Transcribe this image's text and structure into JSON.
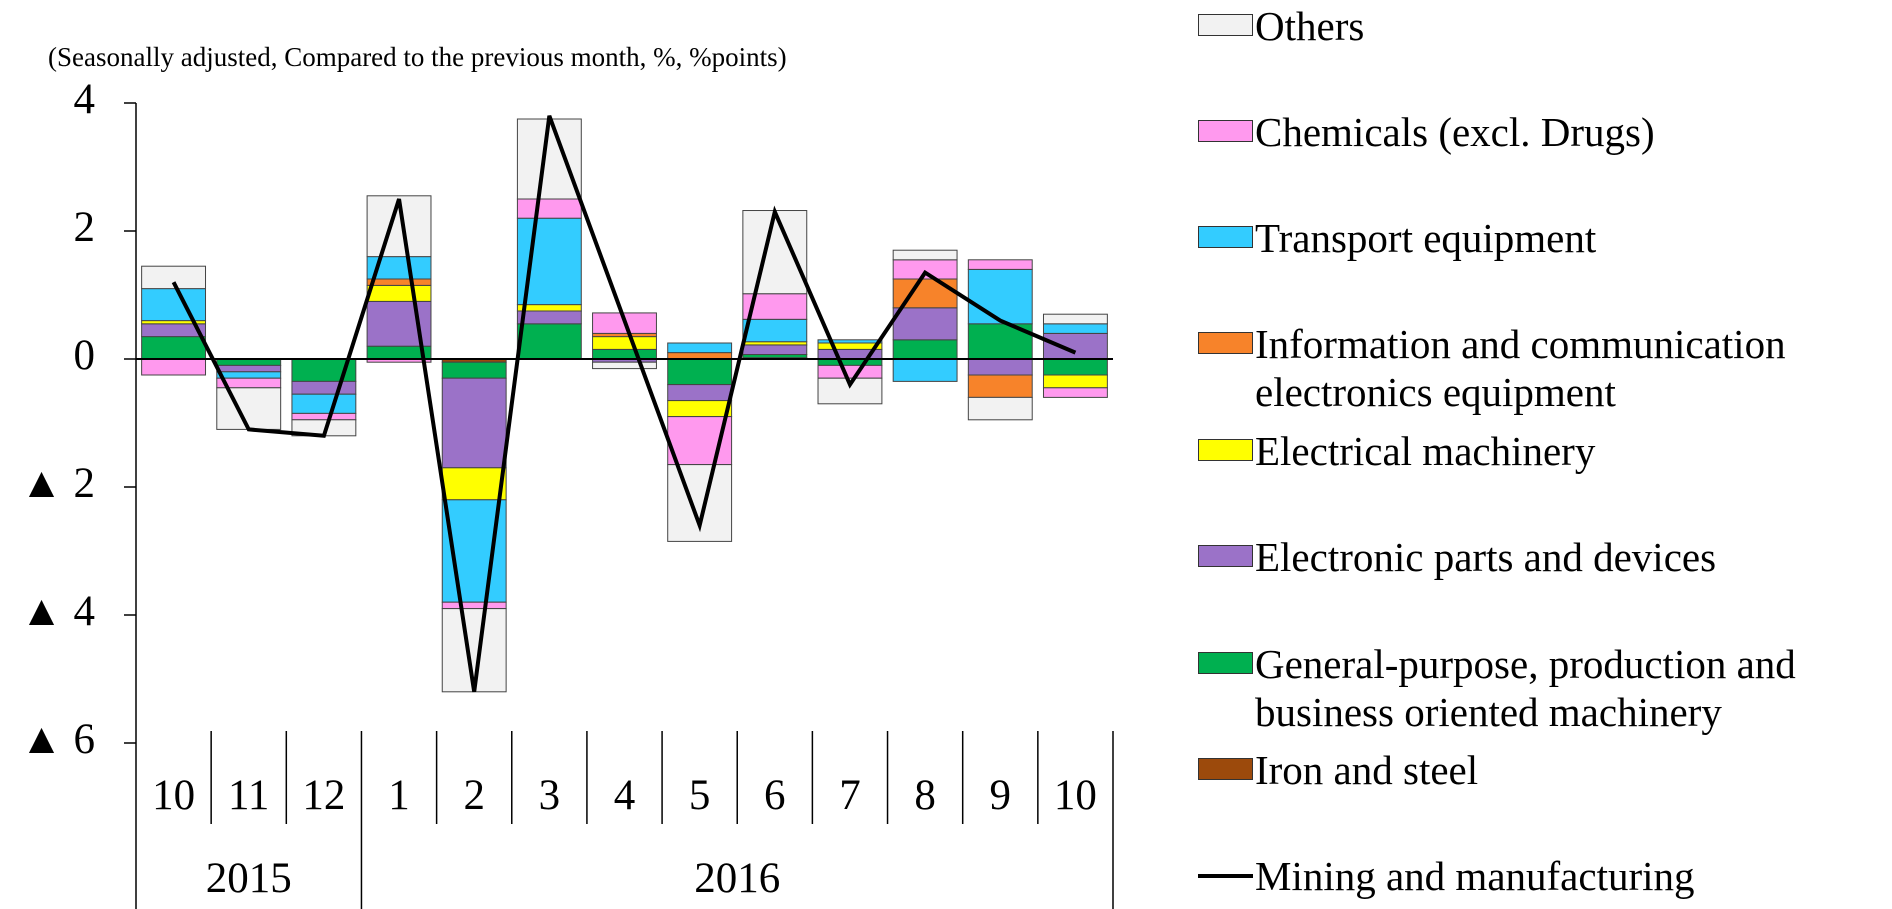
{
  "chart_data": {
    "type": "bar",
    "subtitle": "(Seasonally adjusted, Compared to the previous month, %, %points)",
    "categories": [
      "10",
      "11",
      "12",
      "1",
      "2",
      "3",
      "4",
      "5",
      "6",
      "7",
      "8",
      "9",
      "10"
    ],
    "year_groups": [
      {
        "label": "2015",
        "count": 3
      },
      {
        "label": "2016",
        "count": 10
      }
    ],
    "ylim": [
      -6,
      4
    ],
    "yticks": [
      4,
      2,
      0,
      {
        "value": -2,
        "label": "▲ 2"
      },
      {
        "value": -4,
        "label": "▲ 4"
      },
      {
        "value": -6,
        "label": "▲ 6"
      }
    ],
    "series": [
      {
        "name": "Others",
        "color": "#f2f2f2",
        "values": [
          0.35,
          -0.65,
          -0.25,
          0.95,
          -1.3,
          1.25,
          -0.1,
          -1.2,
          1.3,
          -0.4,
          0.15,
          -0.35,
          0.15
        ]
      },
      {
        "name": "Chemicals (excl. Drugs)",
        "color": "#ff99ee",
        "values": [
          -0.25,
          -0.15,
          -0.1,
          -0.05,
          -0.1,
          0.3,
          0.32,
          -0.75,
          0.4,
          -0.2,
          0.3,
          0.15,
          -0.15
        ]
      },
      {
        "name": "Transport equipment",
        "color": "#33ccff",
        "values": [
          0.5,
          -0.1,
          -0.3,
          0.35,
          -1.6,
          1.35,
          0,
          0.15,
          0.35,
          0.05,
          -0.35,
          0.85,
          0.15
        ]
      },
      {
        "name": "Information and communication electronics equipment",
        "color": "#f7832a",
        "values": [
          0,
          0,
          0,
          0.1,
          0,
          0,
          0.05,
          0.1,
          0,
          0,
          0.45,
          -0.35,
          0
        ]
      },
      {
        "name": "Electrical machinery",
        "color": "#ffff00",
        "values": [
          0.05,
          0,
          0,
          0.25,
          -0.5,
          0.1,
          0.2,
          -0.25,
          0.05,
          0.1,
          0,
          0,
          -0.2
        ]
      },
      {
        "name": "Electronic parts and devices",
        "color": "#9b72c8",
        "values": [
          0.2,
          -0.1,
          -0.2,
          0.7,
          -1.4,
          0.2,
          -0.05,
          -0.25,
          0.15,
          0.15,
          0.5,
          -0.25,
          0.4
        ]
      },
      {
        "name": "General-purpose, production and business oriented machinery",
        "color": "#00b050",
        "values": [
          0.35,
          -0.1,
          -0.35,
          0.2,
          -0.25,
          0.55,
          0.15,
          -0.4,
          0.05,
          -0.1,
          0.3,
          0.55,
          -0.25
        ]
      },
      {
        "name": "Iron and steel",
        "color": "#9c4a0c",
        "values": [
          0,
          0,
          0,
          0,
          -0.05,
          0,
          0,
          0,
          0.02,
          0,
          0,
          0,
          0
        ]
      },
      {
        "name": "Mining and manufacturing",
        "type": "line",
        "color": "#000000",
        "values": [
          1.2,
          -1.1,
          -1.2,
          2.5,
          -5.2,
          3.8,
          0.6,
          -2.6,
          2.3,
          -0.4,
          1.35,
          0.6,
          0.1
        ]
      }
    ]
  }
}
